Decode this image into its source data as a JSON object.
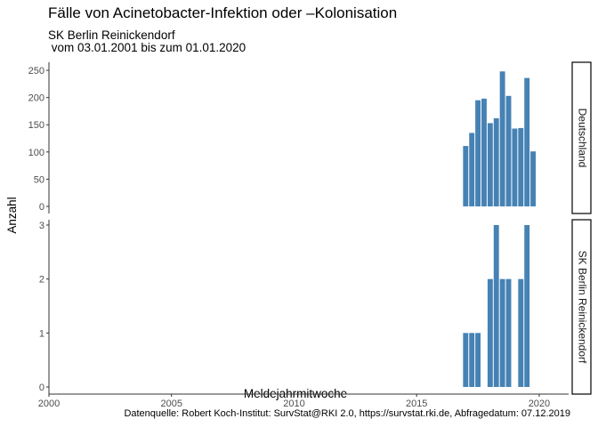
{
  "title": "Fälle von Acinetobacter-Infektion oder –Kolonisation",
  "subtitle_line1": "SK Berlin Reinickendorf",
  "subtitle_line2": " vom 03.01.2001 bis zum 01.01.2020",
  "caption": "Datenquelle: Robert Koch-Institut: SurvStat@RKI 2.0, https://survstat.rki.de, Abfragedatum: 07.12.2019",
  "colors": {
    "bar": "#4682b4",
    "axis": "#333333",
    "strip_border": "#000000"
  },
  "chart_data": {
    "type": "bar",
    "xlabel": "Meldejahrmitwoche",
    "ylabel": "Anzahl",
    "xlim": [
      2000,
      2021.2
    ],
    "x_ticks": [
      2000,
      2005,
      2010,
      2015,
      2020
    ],
    "grid": false,
    "facets": [
      {
        "strip": "Deutschland",
        "ylim": [
          0,
          255
        ],
        "y_ticks": [
          0,
          50,
          100,
          150,
          200,
          250
        ],
        "x": [
          2017.0,
          2017.25,
          2017.5,
          2017.75,
          2018.0,
          2018.25,
          2018.5,
          2018.75,
          2019.0,
          2019.25,
          2019.5,
          2019.75
        ],
        "values": [
          111,
          135,
          195,
          198,
          153,
          162,
          248,
          203,
          143,
          144,
          236,
          101
        ]
      },
      {
        "strip": "SK Berlin Reinickendorf",
        "ylim": [
          0,
          3
        ],
        "y_ticks": [
          0,
          1,
          2,
          3
        ],
        "x": [
          2017.0,
          2017.25,
          2017.5,
          2018.0,
          2018.25,
          2018.5,
          2018.75,
          2019.25,
          2019.5
        ],
        "values": [
          1,
          1,
          1,
          2,
          3,
          2,
          2,
          2,
          3
        ]
      }
    ]
  }
}
